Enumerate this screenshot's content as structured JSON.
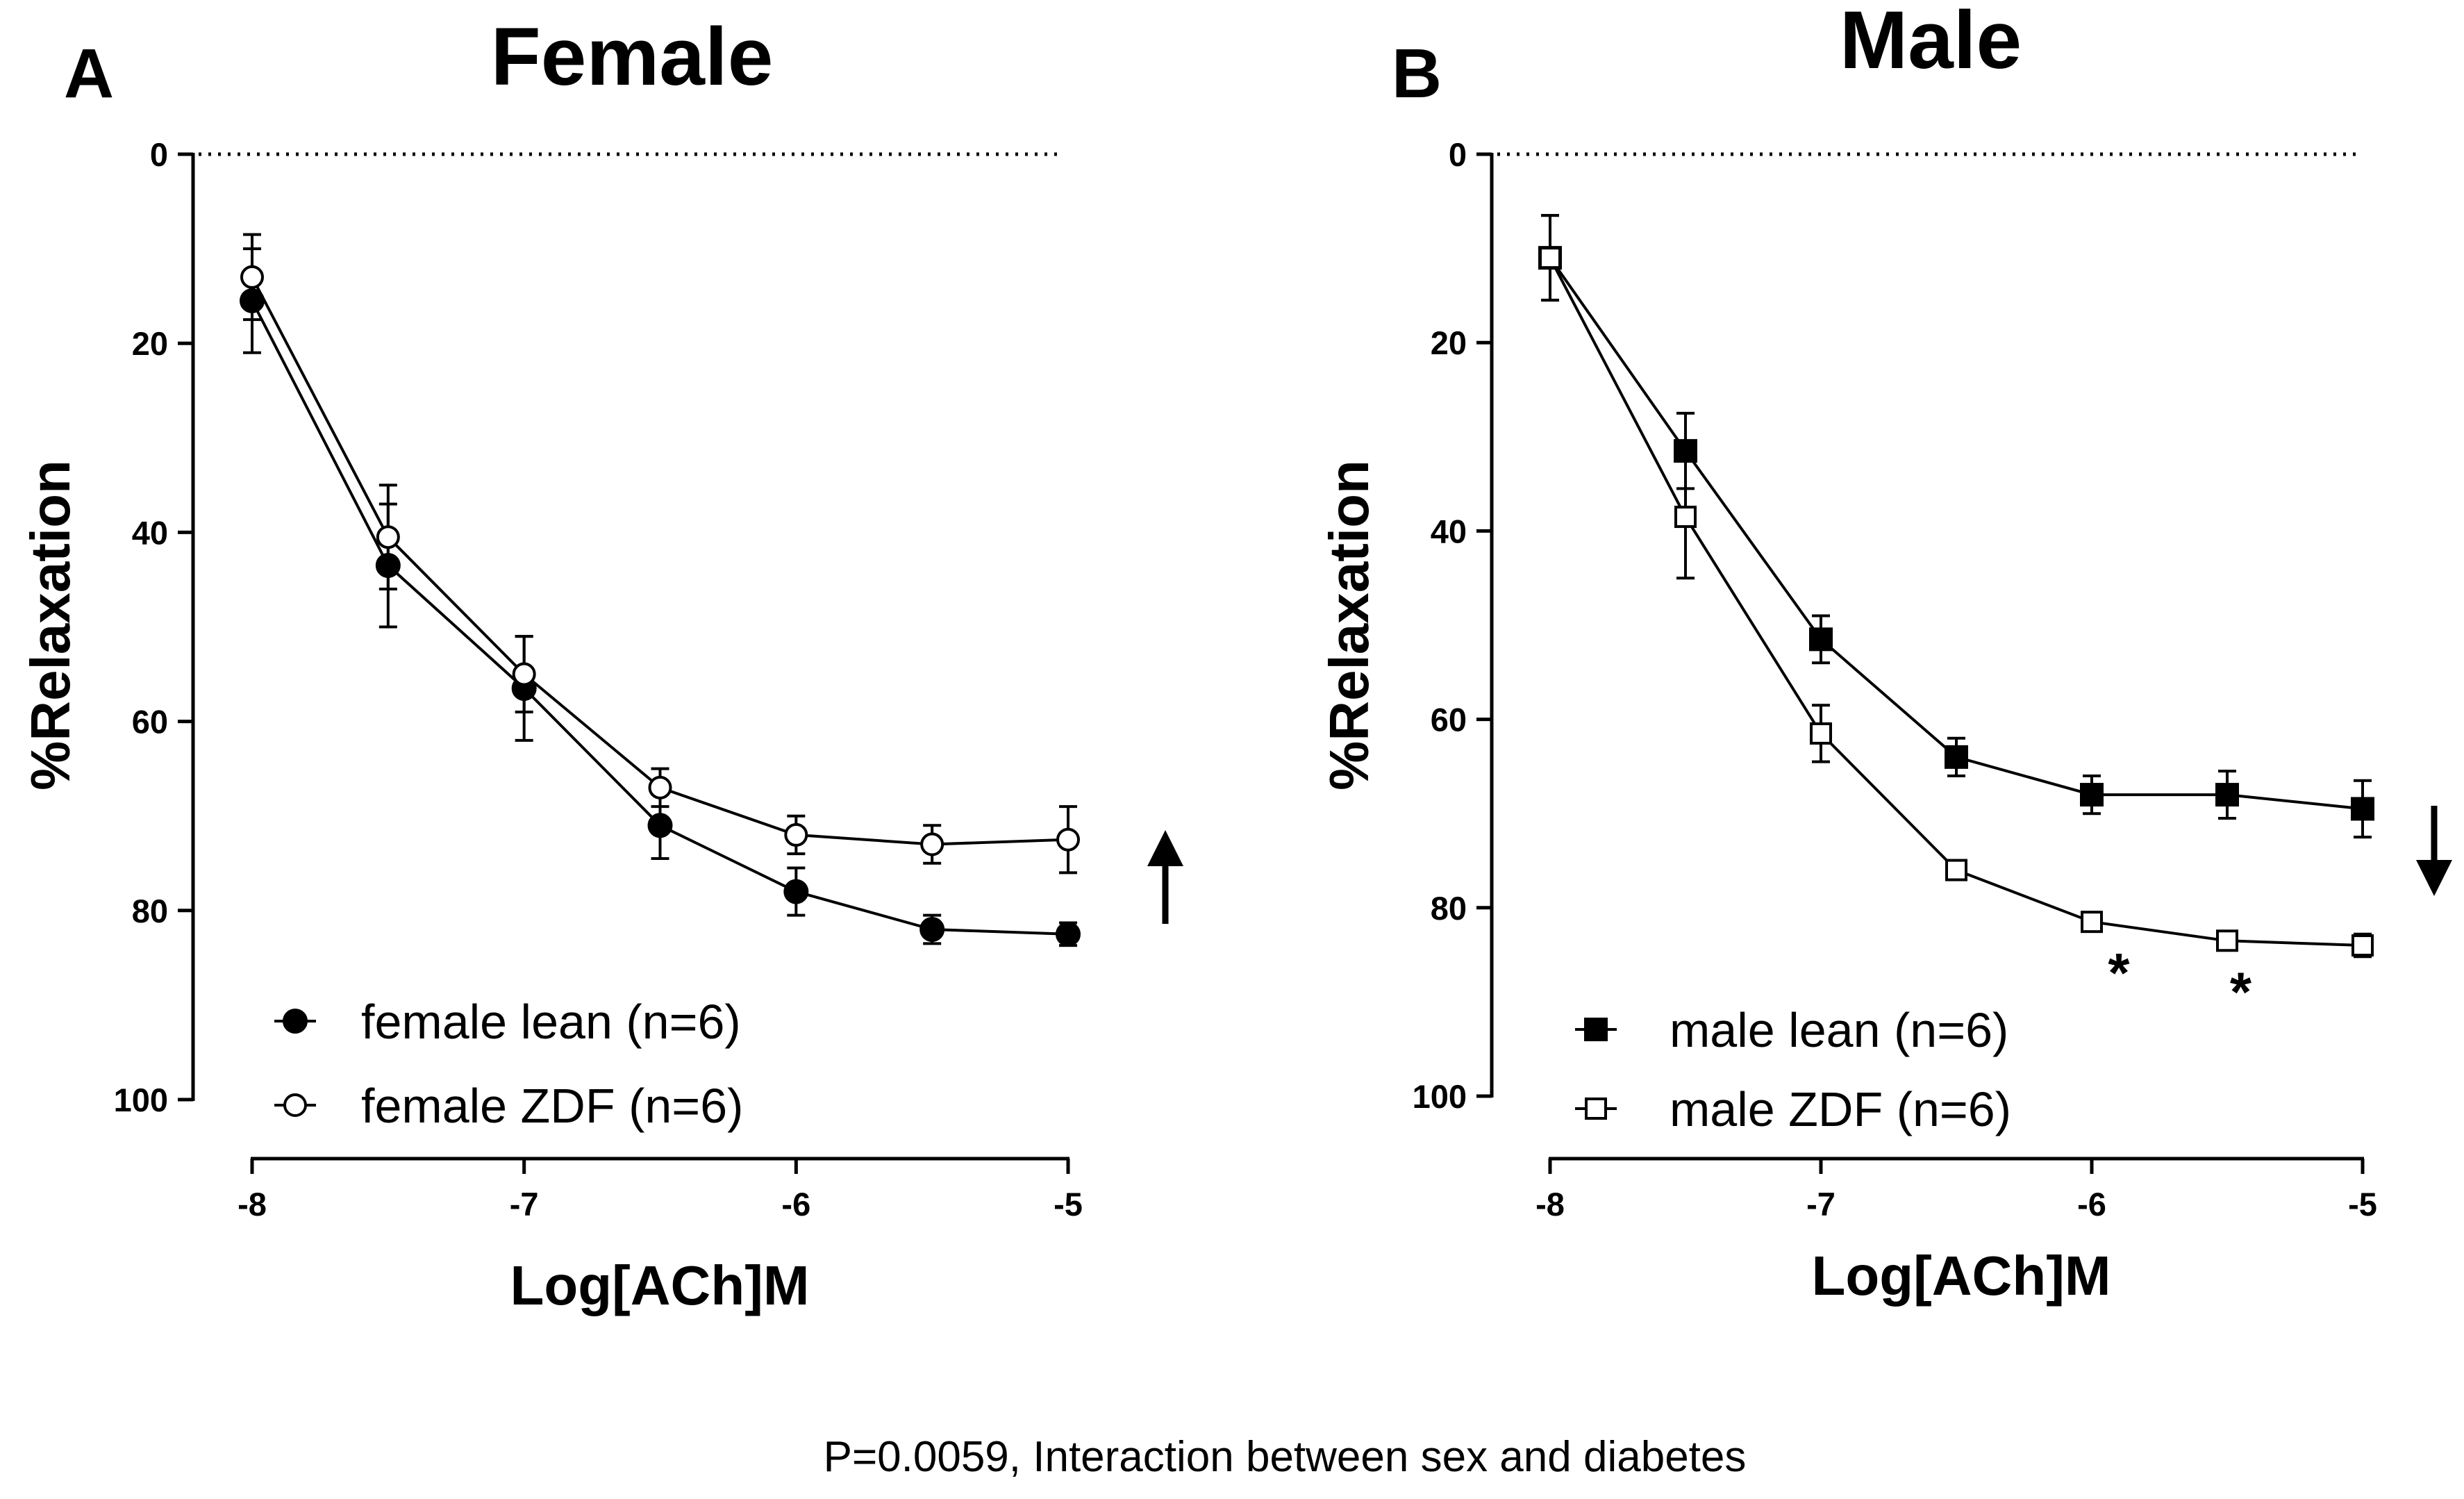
{
  "figure": {
    "footnote": "P=0.0059, Interaction between sex and diabetes"
  },
  "chart_data": [
    {
      "type": "line",
      "panel_label": "A",
      "title": "Female",
      "xlabel": "Log[ACh]M",
      "ylabel": "%Relaxation",
      "xlim": [
        -8,
        -5
      ],
      "ylim": [
        0,
        100
      ],
      "y_inverted": true,
      "x_ticks": [
        -8,
        -7,
        -6,
        -5
      ],
      "x_tick_labels": [
        "-8",
        "-7",
        "-6",
        "-5"
      ],
      "y_ticks": [
        0,
        20,
        40,
        60,
        80,
        100
      ],
      "y_tick_labels": [
        "0",
        "20",
        "40",
        "60",
        "80",
        "100"
      ],
      "reference_line": {
        "y": 0,
        "style": "dotted"
      },
      "legend_position": "bottom-left",
      "trend_arrow": "up",
      "x": [
        -8,
        -7.5,
        -7,
        -6.5,
        -6,
        -5.5,
        -5
      ],
      "series": [
        {
          "name": "female lean (n=6)",
          "marker": "filled-circle",
          "values": [
            15.5,
            43.5,
            56.5,
            71,
            78,
            82,
            82.5
          ],
          "errors": [
            5.5,
            6.5,
            5.5,
            3.5,
            2.5,
            1.5,
            1.2
          ]
        },
        {
          "name": "female ZDF (n=6)",
          "marker": "open-circle",
          "values": [
            13,
            40.5,
            55,
            67,
            72,
            73,
            72.5
          ],
          "errors": [
            4.5,
            5.5,
            4,
            2,
            2,
            2,
            3.5
          ]
        }
      ],
      "annotations": []
    },
    {
      "type": "line",
      "panel_label": "B",
      "title": "Male",
      "xlabel": "Log[ACh]M",
      "ylabel": "%Relaxation",
      "xlim": [
        -8,
        -5
      ],
      "ylim": [
        0,
        100
      ],
      "y_inverted": true,
      "x_ticks": [
        -8,
        -7,
        -6,
        -5
      ],
      "x_tick_labels": [
        "-8",
        "-7",
        "-6",
        "-5"
      ],
      "y_ticks": [
        0,
        20,
        40,
        60,
        80,
        100
      ],
      "y_tick_labels": [
        "0",
        "20",
        "40",
        "60",
        "80",
        "100"
      ],
      "reference_line": {
        "y": 0,
        "style": "dotted"
      },
      "legend_position": "bottom-left",
      "trend_arrow": "down",
      "x": [
        -8,
        -7.5,
        -7,
        -6.5,
        -6,
        -5.5,
        -5
      ],
      "series": [
        {
          "name": "male lean (n=6)",
          "marker": "filled-square",
          "values": [
            11,
            31.5,
            51.5,
            64,
            68,
            68,
            69.5
          ],
          "errors": [
            4.5,
            4,
            2.5,
            2,
            2,
            2.5,
            3
          ]
        },
        {
          "name": "male ZDF (n=6)",
          "marker": "open-square",
          "values": [
            11,
            38.5,
            61.5,
            76,
            81.5,
            83.5,
            84
          ],
          "errors": [
            4.5,
            6.5,
            3,
            1,
            1,
            1,
            1.2
          ]
        }
      ],
      "annotations": [
        {
          "x": -5.9,
          "y": 86,
          "text": "*"
        },
        {
          "x": -5.45,
          "y": 88,
          "text": "*"
        }
      ]
    }
  ]
}
